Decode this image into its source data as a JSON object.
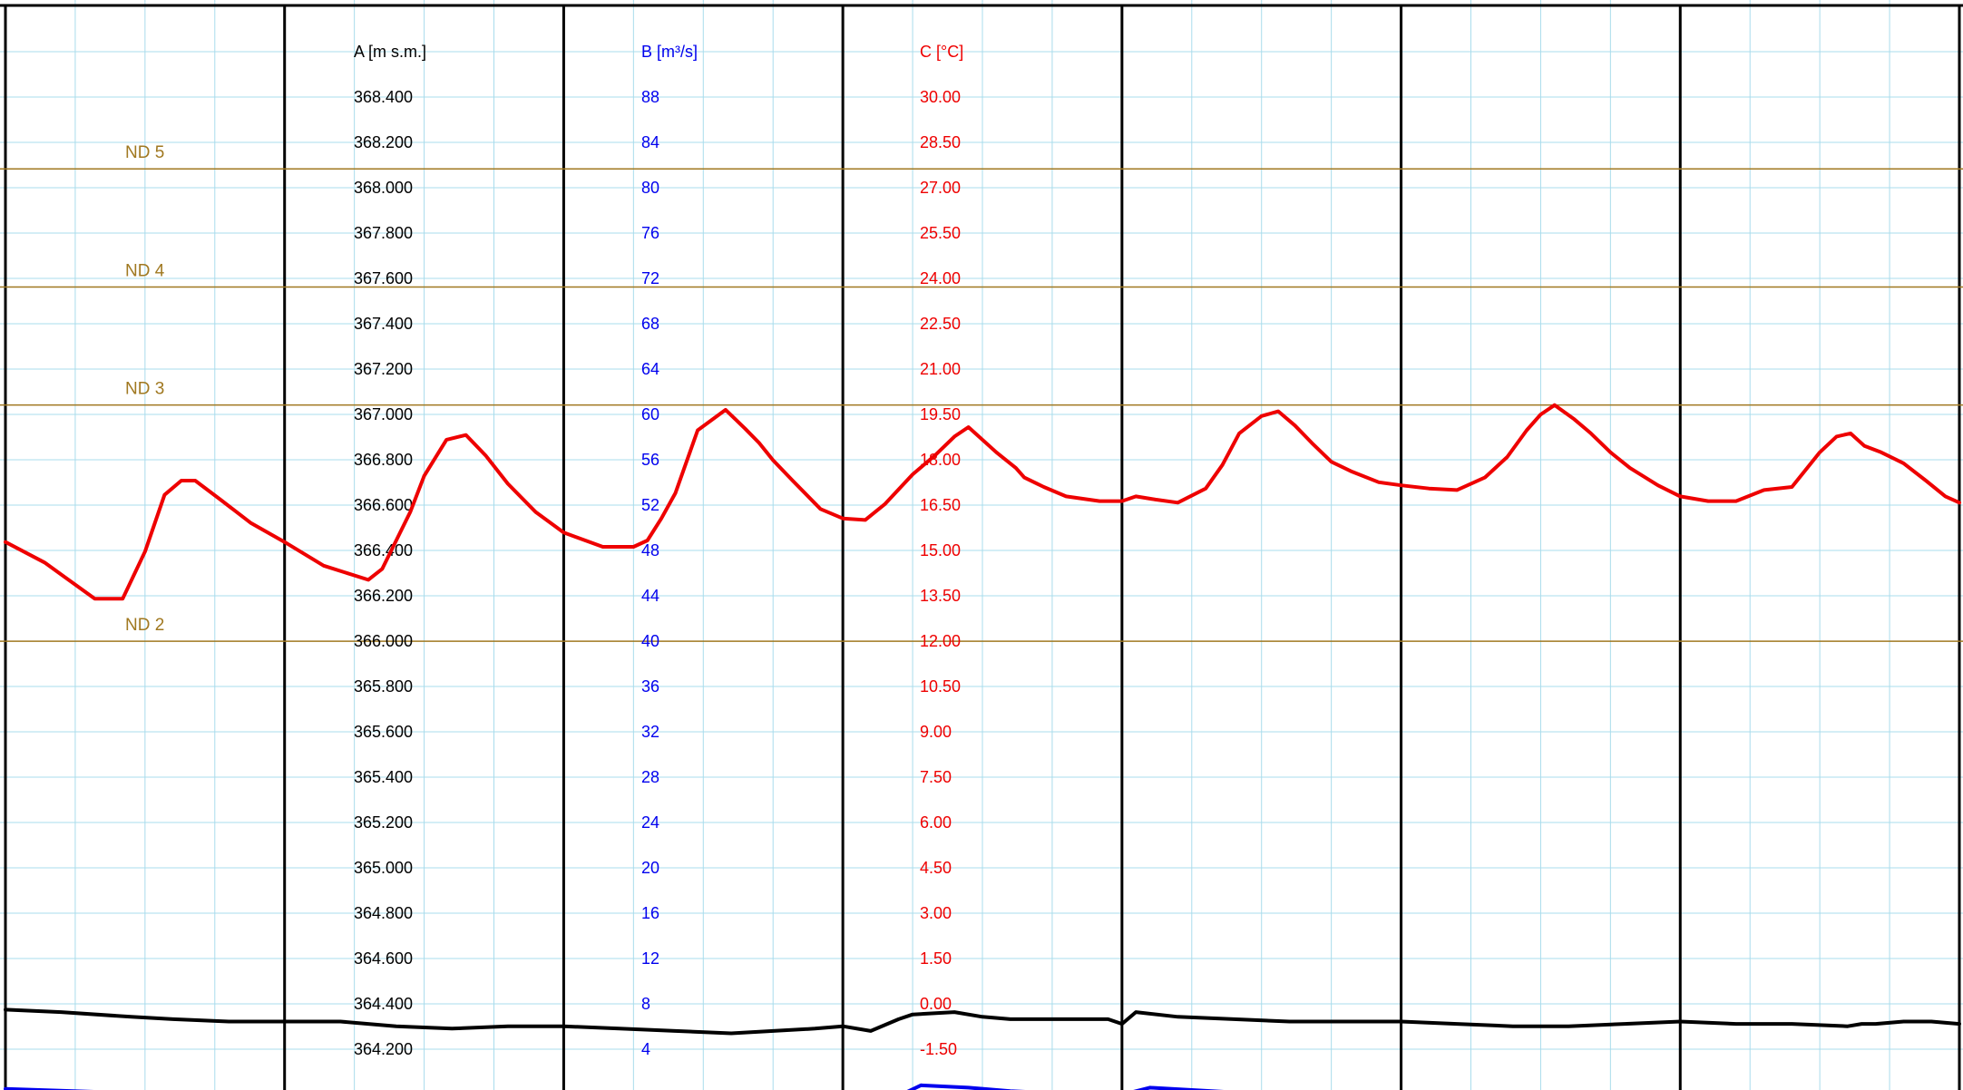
{
  "chart_data": {
    "type": "line",
    "title": "",
    "grid": true,
    "axes": {
      "A": {
        "label": "A [m s.m.]",
        "color": "#000000",
        "range": [
          364.1,
          368.5
        ],
        "ticks": [
          "368.400",
          "368.200",
          "368.000",
          "367.800",
          "367.600",
          "367.400",
          "367.200",
          "367.000",
          "366.800",
          "366.600",
          "366.400",
          "366.200",
          "366.000",
          "365.800",
          "365.600",
          "365.400",
          "365.200",
          "365.000",
          "364.800",
          "364.600",
          "364.400",
          "364.200"
        ]
      },
      "B": {
        "label": "B [m³/s]",
        "color": "#0000ee",
        "range": [
          2,
          90
        ],
        "ticks": [
          "88",
          "84",
          "80",
          "76",
          "72",
          "68",
          "64",
          "60",
          "56",
          "52",
          "48",
          "44",
          "40",
          "36",
          "32",
          "28",
          "24",
          "20",
          "16",
          "12",
          "8",
          "4"
        ]
      },
      "C": {
        "label": "C [°C]",
        "color": "#ee0000",
        "range": [
          -2.25,
          30.75
        ],
        "ticks": [
          "30.00",
          "28.50",
          "27.00",
          "25.50",
          "24.00",
          "22.50",
          "21.00",
          "19.50",
          "18.00",
          "16.50",
          "15.00",
          "13.50",
          "12.00",
          "10.50",
          "9.00",
          "7.50",
          "6.00",
          "4.50",
          "3.00",
          "1.50",
          "0.00",
          "-1.50"
        ]
      }
    },
    "x_range": [
      0,
      7
    ],
    "reference_lines": [
      {
        "label": "ND 5",
        "value": 368.0,
        "color": "#a07820"
      },
      {
        "label": "ND 4",
        "value": 367.5,
        "color": "#a07820"
      },
      {
        "label": "ND 3",
        "value": 367.0,
        "color": "#a07820"
      },
      {
        "label": "ND 2",
        "value": 366.0,
        "color": "#a07820"
      }
    ],
    "series": [
      {
        "axis": "C",
        "color": "#ee0000",
        "x": [
          0,
          0.14,
          0.32,
          0.42,
          0.5,
          0.57,
          0.63,
          0.68,
          0.77,
          0.88,
          1.0,
          1.14,
          1.3,
          1.35,
          1.4,
          1.45,
          1.5,
          1.58,
          1.65,
          1.72,
          1.8,
          1.9,
          2.0,
          2.14,
          2.25,
          2.3,
          2.35,
          2.4,
          2.48,
          2.58,
          2.65,
          2.7,
          2.75,
          2.82,
          2.92,
          3.0,
          3.08,
          3.15,
          3.25,
          3.33,
          3.4,
          3.45,
          3.55,
          3.62,
          3.65,
          3.72,
          3.8,
          3.92,
          4.0,
          4.05,
          4.12,
          4.2,
          4.3,
          4.36,
          4.42,
          4.5,
          4.56,
          4.62,
          4.68,
          4.75,
          4.82,
          4.92,
          5.0,
          5.1,
          5.2,
          5.3,
          5.38,
          5.45,
          5.5,
          5.55,
          5.62,
          5.68,
          5.75,
          5.82,
          5.92,
          6.0,
          6.1,
          6.2,
          6.3,
          6.4,
          6.5,
          6.56,
          6.61,
          6.66,
          6.72,
          6.8,
          6.88,
          6.95,
          7.0
        ],
        "y": [
          15.15,
          14.5,
          13.35,
          13.35,
          14.85,
          16.65,
          17.1,
          17.1,
          16.5,
          15.75,
          15.15,
          14.4,
          13.95,
          14.3,
          15.2,
          16.1,
          17.25,
          18.4,
          18.55,
          17.9,
          17.0,
          16.1,
          15.45,
          15.0,
          15.0,
          15.2,
          15.9,
          16.7,
          18.7,
          19.35,
          18.75,
          18.3,
          17.75,
          17.1,
          16.2,
          15.9,
          15.85,
          16.35,
          17.3,
          17.9,
          18.5,
          18.8,
          18.0,
          17.5,
          17.2,
          16.9,
          16.6,
          16.45,
          16.45,
          16.6,
          16.5,
          16.4,
          16.85,
          17.6,
          18.6,
          19.15,
          19.3,
          18.85,
          18.3,
          17.7,
          17.4,
          17.05,
          16.95,
          16.85,
          16.8,
          17.2,
          17.85,
          18.7,
          19.2,
          19.5,
          19.05,
          18.6,
          18.0,
          17.5,
          16.95,
          16.6,
          16.45,
          16.45,
          16.8,
          16.9,
          18.0,
          18.5,
          18.6,
          18.2,
          18.0,
          17.65,
          17.1,
          16.6,
          16.4
        ]
      },
      {
        "axis": "A",
        "color": "#000000",
        "x": [
          0,
          0.2,
          0.45,
          0.6,
          0.8,
          1.0,
          1.2,
          1.4,
          1.6,
          1.8,
          2.0,
          2.2,
          2.4,
          2.6,
          2.75,
          2.9,
          3.0,
          3.1,
          3.2,
          3.25,
          3.4,
          3.5,
          3.6,
          3.8,
          3.9,
          3.95,
          4.0,
          4.05,
          4.2,
          4.4,
          4.6,
          4.8,
          5.0,
          5.2,
          5.4,
          5.6,
          5.8,
          6.0,
          6.2,
          6.4,
          6.6,
          6.65,
          6.7,
          6.8,
          6.9,
          7.0
        ],
        "y": [
          364.44,
          364.43,
          364.41,
          364.4,
          364.39,
          364.39,
          364.39,
          364.37,
          364.36,
          364.37,
          364.37,
          364.36,
          364.35,
          364.34,
          364.35,
          364.36,
          364.37,
          364.35,
          364.4,
          364.42,
          364.43,
          364.41,
          364.4,
          364.4,
          364.4,
          364.4,
          364.38,
          364.43,
          364.41,
          364.4,
          364.39,
          364.39,
          364.39,
          364.38,
          364.37,
          364.37,
          364.38,
          364.39,
          364.38,
          364.38,
          364.37,
          364.38,
          364.38,
          364.39,
          364.39,
          364.38
        ]
      },
      {
        "axis": "B",
        "color": "#0000ee",
        "x": [
          0,
          0.5,
          1.0,
          1.5,
          2.0,
          2.5,
          3.0,
          3.2,
          3.28,
          3.45,
          3.6,
          3.8,
          4.0,
          4.1,
          4.4,
          4.8,
          5.2,
          5.6,
          6.0,
          6.4,
          6.7,
          6.9,
          7.0
        ],
        "y": [
          2.1,
          1.7,
          1.6,
          1.5,
          1.4,
          1.4,
          1.6,
          1.5,
          2.4,
          2.2,
          1.9,
          1.7,
          1.6,
          2.2,
          1.8,
          1.6,
          1.5,
          1.5,
          1.4,
          1.5,
          1.7,
          1.8,
          1.6
        ]
      }
    ]
  }
}
